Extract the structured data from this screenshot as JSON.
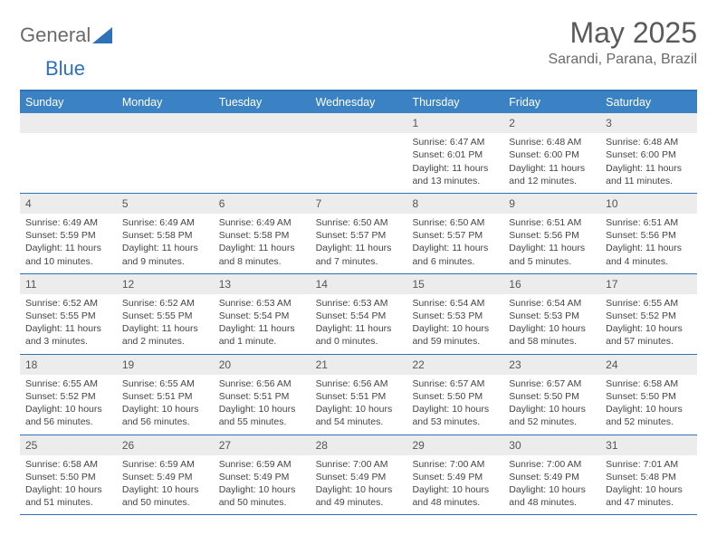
{
  "brand": {
    "part1": "General",
    "part2": "Blue"
  },
  "logo_colors": {
    "triangle": "#2e73b8",
    "text_gray": "#6a6a6a"
  },
  "header": {
    "title": "May 2025",
    "location": "Sarandi, Parana, Brazil"
  },
  "colors": {
    "header_bg": "#3b82c4",
    "border": "#2e73b8",
    "daynum_bg": "#ececec",
    "text": "#444444"
  },
  "day_names": [
    "Sunday",
    "Monday",
    "Tuesday",
    "Wednesday",
    "Thursday",
    "Friday",
    "Saturday"
  ],
  "weeks": [
    [
      null,
      null,
      null,
      null,
      {
        "n": "1",
        "sr": "Sunrise: 6:47 AM",
        "ss": "Sunset: 6:01 PM",
        "d1": "Daylight: 11 hours",
        "d2": "and 13 minutes."
      },
      {
        "n": "2",
        "sr": "Sunrise: 6:48 AM",
        "ss": "Sunset: 6:00 PM",
        "d1": "Daylight: 11 hours",
        "d2": "and 12 minutes."
      },
      {
        "n": "3",
        "sr": "Sunrise: 6:48 AM",
        "ss": "Sunset: 6:00 PM",
        "d1": "Daylight: 11 hours",
        "d2": "and 11 minutes."
      }
    ],
    [
      {
        "n": "4",
        "sr": "Sunrise: 6:49 AM",
        "ss": "Sunset: 5:59 PM",
        "d1": "Daylight: 11 hours",
        "d2": "and 10 minutes."
      },
      {
        "n": "5",
        "sr": "Sunrise: 6:49 AM",
        "ss": "Sunset: 5:58 PM",
        "d1": "Daylight: 11 hours",
        "d2": "and 9 minutes."
      },
      {
        "n": "6",
        "sr": "Sunrise: 6:49 AM",
        "ss": "Sunset: 5:58 PM",
        "d1": "Daylight: 11 hours",
        "d2": "and 8 minutes."
      },
      {
        "n": "7",
        "sr": "Sunrise: 6:50 AM",
        "ss": "Sunset: 5:57 PM",
        "d1": "Daylight: 11 hours",
        "d2": "and 7 minutes."
      },
      {
        "n": "8",
        "sr": "Sunrise: 6:50 AM",
        "ss": "Sunset: 5:57 PM",
        "d1": "Daylight: 11 hours",
        "d2": "and 6 minutes."
      },
      {
        "n": "9",
        "sr": "Sunrise: 6:51 AM",
        "ss": "Sunset: 5:56 PM",
        "d1": "Daylight: 11 hours",
        "d2": "and 5 minutes."
      },
      {
        "n": "10",
        "sr": "Sunrise: 6:51 AM",
        "ss": "Sunset: 5:56 PM",
        "d1": "Daylight: 11 hours",
        "d2": "and 4 minutes."
      }
    ],
    [
      {
        "n": "11",
        "sr": "Sunrise: 6:52 AM",
        "ss": "Sunset: 5:55 PM",
        "d1": "Daylight: 11 hours",
        "d2": "and 3 minutes."
      },
      {
        "n": "12",
        "sr": "Sunrise: 6:52 AM",
        "ss": "Sunset: 5:55 PM",
        "d1": "Daylight: 11 hours",
        "d2": "and 2 minutes."
      },
      {
        "n": "13",
        "sr": "Sunrise: 6:53 AM",
        "ss": "Sunset: 5:54 PM",
        "d1": "Daylight: 11 hours",
        "d2": "and 1 minute."
      },
      {
        "n": "14",
        "sr": "Sunrise: 6:53 AM",
        "ss": "Sunset: 5:54 PM",
        "d1": "Daylight: 11 hours",
        "d2": "and 0 minutes."
      },
      {
        "n": "15",
        "sr": "Sunrise: 6:54 AM",
        "ss": "Sunset: 5:53 PM",
        "d1": "Daylight: 10 hours",
        "d2": "and 59 minutes."
      },
      {
        "n": "16",
        "sr": "Sunrise: 6:54 AM",
        "ss": "Sunset: 5:53 PM",
        "d1": "Daylight: 10 hours",
        "d2": "and 58 minutes."
      },
      {
        "n": "17",
        "sr": "Sunrise: 6:55 AM",
        "ss": "Sunset: 5:52 PM",
        "d1": "Daylight: 10 hours",
        "d2": "and 57 minutes."
      }
    ],
    [
      {
        "n": "18",
        "sr": "Sunrise: 6:55 AM",
        "ss": "Sunset: 5:52 PM",
        "d1": "Daylight: 10 hours",
        "d2": "and 56 minutes."
      },
      {
        "n": "19",
        "sr": "Sunrise: 6:55 AM",
        "ss": "Sunset: 5:51 PM",
        "d1": "Daylight: 10 hours",
        "d2": "and 56 minutes."
      },
      {
        "n": "20",
        "sr": "Sunrise: 6:56 AM",
        "ss": "Sunset: 5:51 PM",
        "d1": "Daylight: 10 hours",
        "d2": "and 55 minutes."
      },
      {
        "n": "21",
        "sr": "Sunrise: 6:56 AM",
        "ss": "Sunset: 5:51 PM",
        "d1": "Daylight: 10 hours",
        "d2": "and 54 minutes."
      },
      {
        "n": "22",
        "sr": "Sunrise: 6:57 AM",
        "ss": "Sunset: 5:50 PM",
        "d1": "Daylight: 10 hours",
        "d2": "and 53 minutes."
      },
      {
        "n": "23",
        "sr": "Sunrise: 6:57 AM",
        "ss": "Sunset: 5:50 PM",
        "d1": "Daylight: 10 hours",
        "d2": "and 52 minutes."
      },
      {
        "n": "24",
        "sr": "Sunrise: 6:58 AM",
        "ss": "Sunset: 5:50 PM",
        "d1": "Daylight: 10 hours",
        "d2": "and 52 minutes."
      }
    ],
    [
      {
        "n": "25",
        "sr": "Sunrise: 6:58 AM",
        "ss": "Sunset: 5:50 PM",
        "d1": "Daylight: 10 hours",
        "d2": "and 51 minutes."
      },
      {
        "n": "26",
        "sr": "Sunrise: 6:59 AM",
        "ss": "Sunset: 5:49 PM",
        "d1": "Daylight: 10 hours",
        "d2": "and 50 minutes."
      },
      {
        "n": "27",
        "sr": "Sunrise: 6:59 AM",
        "ss": "Sunset: 5:49 PM",
        "d1": "Daylight: 10 hours",
        "d2": "and 50 minutes."
      },
      {
        "n": "28",
        "sr": "Sunrise: 7:00 AM",
        "ss": "Sunset: 5:49 PM",
        "d1": "Daylight: 10 hours",
        "d2": "and 49 minutes."
      },
      {
        "n": "29",
        "sr": "Sunrise: 7:00 AM",
        "ss": "Sunset: 5:49 PM",
        "d1": "Daylight: 10 hours",
        "d2": "and 48 minutes."
      },
      {
        "n": "30",
        "sr": "Sunrise: 7:00 AM",
        "ss": "Sunset: 5:49 PM",
        "d1": "Daylight: 10 hours",
        "d2": "and 48 minutes."
      },
      {
        "n": "31",
        "sr": "Sunrise: 7:01 AM",
        "ss": "Sunset: 5:48 PM",
        "d1": "Daylight: 10 hours",
        "d2": "and 47 minutes."
      }
    ]
  ]
}
